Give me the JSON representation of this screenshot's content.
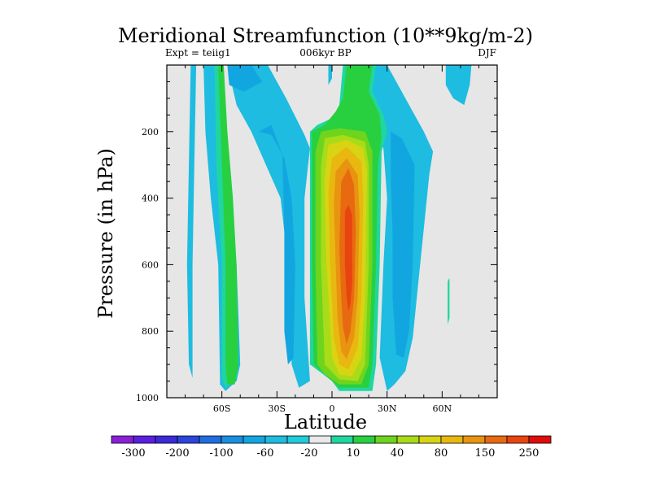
{
  "chart_data": {
    "type": "contour",
    "title": "Meridional Streamfunction (10**9kg/m-2)",
    "subtitle_left": "Expt = teiig1",
    "subtitle_center": "006kyr BP",
    "subtitle_right": "DJF",
    "xlabel": "Latitude",
    "ylabel": "Pressure (in hPa)",
    "xlim": [
      -90,
      90
    ],
    "ylim": [
      1000,
      0
    ],
    "xticks": [
      {
        "value": -60,
        "label": "60S"
      },
      {
        "value": -30,
        "label": "30S"
      },
      {
        "value": 0,
        "label": "0"
      },
      {
        "value": 30,
        "label": "30N"
      },
      {
        "value": 60,
        "label": "60N"
      }
    ],
    "yticks": [
      {
        "value": 200,
        "label": "200"
      },
      {
        "value": 400,
        "label": "400"
      },
      {
        "value": 600,
        "label": "600"
      },
      {
        "value": 800,
        "label": "800"
      },
      {
        "value": 1000,
        "label": "1000"
      }
    ],
    "background_color": "#e6e6e6",
    "colorbar": {
      "labels": [
        "-300",
        "-200",
        "-100",
        "-60",
        "-20",
        "10",
        "40",
        "80",
        "150",
        "250"
      ],
      "colors": [
        "#8a1fd8",
        "#5a1fe0",
        "#3a2ad8",
        "#2a44dc",
        "#1e6ee0",
        "#1a8ee0",
        "#12a6e0",
        "#1ebce0",
        "#20ccd8",
        "#e8e8e8",
        "#20d6a0",
        "#28d040",
        "#6ed41e",
        "#a8dc18",
        "#d8d414",
        "#e8b810",
        "#e89410",
        "#e86a10",
        "#e84410",
        "#e00c0c"
      ]
    },
    "regions": [
      {
        "level": "-20 to -10",
        "color": "#1ebce0",
        "polygon": [
          [
            -77,
            0
          ],
          [
            -74,
            0
          ],
          [
            -75,
            300
          ],
          [
            -76,
            600
          ],
          [
            -76,
            940
          ],
          [
            -75,
            960
          ],
          [
            -78,
            900
          ],
          [
            -79,
            600
          ],
          [
            -78,
            300
          ]
        ]
      },
      {
        "level": "-20 to -10",
        "color": "#1ebce0",
        "polygon": [
          [
            -70,
            0
          ],
          [
            -64,
            0
          ],
          [
            -62,
            200
          ],
          [
            -58,
            350
          ],
          [
            -52,
            600
          ],
          [
            -50,
            900
          ],
          [
            -52,
            950
          ],
          [
            -58,
            980
          ],
          [
            -61,
            960
          ],
          [
            -62,
            600
          ],
          [
            -66,
            400
          ],
          [
            -69,
            200
          ]
        ]
      },
      {
        "level": "-20 to -10",
        "color": "#1ebce0",
        "polygon": [
          [
            -57,
            0
          ],
          [
            -35,
            0
          ],
          [
            -25,
            100
          ],
          [
            -15,
            210
          ],
          [
            -12,
            250
          ],
          [
            -15,
            400
          ],
          [
            -15,
            700
          ],
          [
            -12,
            950
          ],
          [
            -18,
            970
          ],
          [
            -22,
            900
          ],
          [
            -24,
            600
          ],
          [
            -28,
            400
          ],
          [
            -36,
            300
          ],
          [
            -44,
            200
          ],
          [
            -52,
            120
          ]
        ]
      },
      {
        "level": "-20 to -10",
        "color": "#1ebce0",
        "polygon": [
          [
            6,
            50
          ],
          [
            12,
            0
          ],
          [
            30,
            0
          ],
          [
            40,
            100
          ],
          [
            50,
            200
          ],
          [
            55,
            260
          ],
          [
            53,
            330
          ],
          [
            48,
            600
          ],
          [
            44,
            820
          ],
          [
            40,
            920
          ],
          [
            34,
            960
          ],
          [
            30,
            980
          ],
          [
            26,
            880
          ],
          [
            28,
            600
          ],
          [
            30,
            400
          ],
          [
            28,
            250
          ],
          [
            20,
            150
          ],
          [
            12,
            90
          ]
        ]
      },
      {
        "level": "-20 to -10",
        "color": "#1ebce0",
        "polygon": [
          [
            62,
            0
          ],
          [
            76,
            0
          ],
          [
            75,
            60
          ],
          [
            72,
            120
          ],
          [
            66,
            100
          ],
          [
            62,
            60
          ]
        ]
      },
      {
        "level": "-20 to -10",
        "color": "#1ebce0",
        "polygon": [
          [
            -2,
            0
          ],
          [
            0,
            0
          ],
          [
            0,
            40
          ],
          [
            -2,
            60
          ]
        ]
      },
      {
        "level": "-60 to -20",
        "color": "#12a6e0",
        "polygon": [
          [
            -57,
            0
          ],
          [
            -44,
            0
          ],
          [
            -38,
            50
          ],
          [
            -48,
            80
          ],
          [
            -56,
            60
          ]
        ]
      },
      {
        "level": "-60 to -20",
        "color": "#12a6e0",
        "polygon": [
          [
            -40,
            200
          ],
          [
            -33,
            180
          ],
          [
            -27,
            270
          ],
          [
            -26,
            500
          ],
          [
            -26,
            800
          ],
          [
            -24,
            900
          ],
          [
            -21,
            880
          ],
          [
            -20,
            600
          ],
          [
            -22,
            400
          ],
          [
            -26,
            280
          ],
          [
            -33,
            210
          ]
        ]
      },
      {
        "level": "-60 to -20",
        "color": "#12a6e0",
        "polygon": [
          [
            32,
            200
          ],
          [
            38,
            220
          ],
          [
            45,
            300
          ],
          [
            44,
            600
          ],
          [
            42,
            800
          ],
          [
            39,
            880
          ],
          [
            35,
            870
          ],
          [
            33,
            700
          ],
          [
            33,
            500
          ],
          [
            32,
            350
          ]
        ]
      },
      {
        "level": "10 to 40",
        "color": "#20d6a0",
        "polygon": [
          [
            -64,
            0
          ],
          [
            -62,
            0
          ],
          [
            -60,
            200
          ],
          [
            -56,
            380
          ],
          [
            -53,
            600
          ],
          [
            -51,
            900
          ],
          [
            -52,
            940
          ],
          [
            -58,
            970
          ],
          [
            -60,
            940
          ],
          [
            -60,
            600
          ],
          [
            -63,
            300
          ]
        ]
      },
      {
        "level": "10 to 40",
        "color": "#20d6a0",
        "polygon": [
          [
            6,
            0
          ],
          [
            24,
            0
          ],
          [
            22,
            80
          ],
          [
            28,
            150
          ],
          [
            30,
            200
          ],
          [
            27,
            260
          ],
          [
            26,
            600
          ],
          [
            24,
            900
          ],
          [
            22,
            980
          ],
          [
            4,
            980
          ],
          [
            0,
            950
          ],
          [
            -12,
            900
          ],
          [
            -12,
            600
          ],
          [
            -12,
            200
          ],
          [
            -8,
            180
          ],
          [
            0,
            160
          ],
          [
            4,
            120
          ]
        ]
      },
      {
        "level": "10 to 40",
        "color": "#20d6a0",
        "polygon": [
          [
            63,
            650
          ],
          [
            64,
            640
          ],
          [
            64,
            760
          ],
          [
            63,
            780
          ]
        ]
      },
      {
        "level": "40 to 60",
        "color": "#28d040",
        "polygon": [
          [
            -62,
            0
          ],
          [
            -59,
            0
          ],
          [
            -57,
            200
          ],
          [
            -54,
            400
          ],
          [
            -52,
            600
          ],
          [
            -51,
            900
          ],
          [
            -53,
            960
          ],
          [
            -57,
            960
          ],
          [
            -58,
            900
          ],
          [
            -58,
            600
          ],
          [
            -60,
            300
          ]
        ]
      },
      {
        "level": "40 to 60",
        "color": "#28d040",
        "polygon": [
          [
            8,
            0
          ],
          [
            22,
            0
          ],
          [
            20,
            80
          ],
          [
            26,
            150
          ],
          [
            27,
            220
          ],
          [
            25,
            300
          ],
          [
            24,
            600
          ],
          [
            22,
            900
          ],
          [
            20,
            970
          ],
          [
            4,
            970
          ],
          [
            -2,
            940
          ],
          [
            -10,
            900
          ],
          [
            -11,
            600
          ],
          [
            -11,
            200
          ],
          [
            -4,
            180
          ],
          [
            2,
            140
          ],
          [
            6,
            100
          ]
        ]
      },
      {
        "level": "60 to 80",
        "color": "#6ed41e",
        "polygon": [
          [
            -6,
            200
          ],
          [
            4,
            190
          ],
          [
            18,
            200
          ],
          [
            22,
            260
          ],
          [
            22,
            600
          ],
          [
            20,
            900
          ],
          [
            16,
            960
          ],
          [
            4,
            960
          ],
          [
            -4,
            930
          ],
          [
            -8,
            900
          ],
          [
            -9,
            600
          ],
          [
            -9,
            260
          ]
        ]
      },
      {
        "level": "80 to 100",
        "color": "#a8dc18",
        "polygon": [
          [
            -4,
            220
          ],
          [
            6,
            210
          ],
          [
            18,
            230
          ],
          [
            20,
            300
          ],
          [
            20,
            600
          ],
          [
            18,
            900
          ],
          [
            14,
            950
          ],
          [
            4,
            945
          ],
          [
            -4,
            900
          ],
          [
            -6,
            600
          ],
          [
            -6,
            300
          ]
        ]
      },
      {
        "level": "100 to 150",
        "color": "#d8d414",
        "polygon": [
          [
            -2,
            240
          ],
          [
            8,
            225
          ],
          [
            17,
            250
          ],
          [
            19,
            320
          ],
          [
            18,
            700
          ],
          [
            16,
            880
          ],
          [
            11,
            935
          ],
          [
            4,
            930
          ],
          [
            0,
            880
          ],
          [
            -3,
            600
          ],
          [
            -4,
            340
          ]
        ]
      },
      {
        "level": "150 to 200",
        "color": "#e8b810",
        "polygon": [
          [
            0,
            280
          ],
          [
            8,
            245
          ],
          [
            16,
            290
          ],
          [
            17,
            400
          ],
          [
            16,
            700
          ],
          [
            14,
            850
          ],
          [
            9,
            915
          ],
          [
            4,
            900
          ],
          [
            1,
            820
          ],
          [
            -1,
            600
          ],
          [
            -2,
            380
          ]
        ]
      },
      {
        "level": "200 to 250",
        "color": "#e89410",
        "polygon": [
          [
            2,
            320
          ],
          [
            8,
            280
          ],
          [
            14,
            330
          ],
          [
            15,
            450
          ],
          [
            14,
            700
          ],
          [
            12,
            820
          ],
          [
            8,
            885
          ],
          [
            5,
            860
          ],
          [
            3,
            760
          ],
          [
            2,
            600
          ],
          [
            1,
            420
          ]
        ]
      },
      {
        "level": "250 to 300",
        "color": "#e86a10",
        "polygon": [
          [
            5,
            350
          ],
          [
            9,
            310
          ],
          [
            12,
            360
          ],
          [
            13,
            500
          ],
          [
            12,
            700
          ],
          [
            10,
            800
          ],
          [
            8,
            840
          ],
          [
            6,
            790
          ],
          [
            5,
            700
          ],
          [
            4,
            550
          ]
        ]
      },
      {
        "level": "300 to 400",
        "color": "#e84410",
        "polygon": [
          [
            7,
            440
          ],
          [
            9,
            420
          ],
          [
            11,
            450
          ],
          [
            11,
            650
          ],
          [
            10,
            720
          ],
          [
            9,
            740
          ],
          [
            8,
            700
          ],
          [
            7,
            600
          ]
        ]
      }
    ]
  }
}
